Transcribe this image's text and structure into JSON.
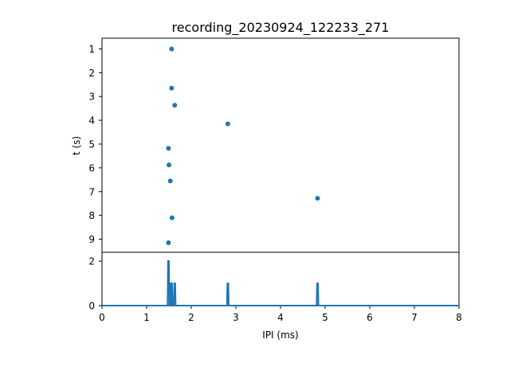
{
  "chart_data": [
    {
      "type": "scatter",
      "title": "recording_20230924_122233_271",
      "xlabel": "",
      "ylabel": "t (s)",
      "y_inverted": true,
      "ylim": [
        9.55,
        0.55
      ],
      "xlim": [
        0,
        8
      ],
      "y_ticks": [
        "1",
        "2",
        "3",
        "4",
        "5",
        "6",
        "7",
        "8",
        "9"
      ],
      "marker_color": "#1f77b4",
      "points": [
        {
          "x": 1.56,
          "y": 1.0
        },
        {
          "x": 1.56,
          "y": 2.65
        },
        {
          "x": 1.63,
          "y": 3.37
        },
        {
          "x": 2.82,
          "y": 4.15
        },
        {
          "x": 1.49,
          "y": 5.18
        },
        {
          "x": 1.5,
          "y": 5.88
        },
        {
          "x": 1.53,
          "y": 6.55
        },
        {
          "x": 4.83,
          "y": 7.28
        },
        {
          "x": 1.57,
          "y": 8.1
        },
        {
          "x": 1.49,
          "y": 9.15
        }
      ]
    },
    {
      "type": "line",
      "xlabel": "IPI (ms)",
      "ylabel": "",
      "xlim": [
        0,
        8
      ],
      "ylim": [
        0,
        2.4
      ],
      "x_ticks": [
        "0",
        "1",
        "2",
        "3",
        "4",
        "5",
        "6",
        "7",
        "8"
      ],
      "y_ticks": [
        "0",
        "2"
      ],
      "line_color": "#1f77b4",
      "peaks": [
        {
          "x": 1.49,
          "y": 2
        },
        {
          "x": 1.53,
          "y": 1
        },
        {
          "x": 1.56,
          "y": 1
        },
        {
          "x": 1.63,
          "y": 1
        },
        {
          "x": 2.82,
          "y": 1
        },
        {
          "x": 4.83,
          "y": 1
        }
      ]
    }
  ]
}
